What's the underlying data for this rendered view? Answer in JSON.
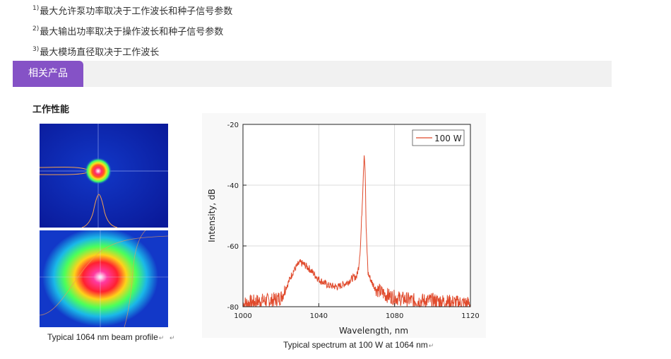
{
  "notes": [
    {
      "sup": "1)",
      "text": "最大允许泵功率取决于工作波长和种子信号参数"
    },
    {
      "sup": "2)",
      "text": "最大输出功率取决于操作波长和种子信号参数"
    },
    {
      "sup": "3)",
      "text": "最大模场直径取决于工作波长"
    }
  ],
  "section": {
    "tab_label": "相关产品"
  },
  "performance_title": "工作性能",
  "beam_caption": "Typical 1064 nm beam profile",
  "spectrum_caption": "Typical spectrum at 100 W at 1064 nm",
  "return_mark": "↵",
  "colors": {
    "accent": "#8552c6",
    "bar_bg": "#f1f1f1",
    "series": "#e04a2c"
  },
  "chart_data": {
    "type": "line",
    "title": "",
    "xlabel": "Wavelength, nm",
    "ylabel": "Intensity, dB",
    "xlim": [
      1000,
      1120
    ],
    "ylim": [
      -80,
      -20
    ],
    "xticks": [
      1000,
      1040,
      1080,
      1120
    ],
    "yticks": [
      -20,
      -40,
      -60,
      -80
    ],
    "grid": true,
    "legend": "top-right",
    "series": [
      {
        "name": "100 W",
        "x": [
          1000,
          1005,
          1010,
          1015,
          1020,
          1024,
          1026,
          1028,
          1030,
          1032,
          1035,
          1040,
          1045,
          1050,
          1055,
          1058,
          1060,
          1061,
          1062,
          1063,
          1063.5,
          1064,
          1064.5,
          1065,
          1066,
          1068,
          1070,
          1075,
          1080,
          1090,
          1100,
          1110,
          1120
        ],
        "y": [
          -79,
          -78.5,
          -78,
          -78,
          -77,
          -72,
          -69,
          -67,
          -65.5,
          -66,
          -67.5,
          -71,
          -73,
          -73.5,
          -72,
          -70.5,
          -70,
          -67,
          -60,
          -45,
          -36,
          -29,
          -36,
          -55,
          -69,
          -72,
          -74,
          -76,
          -77,
          -78,
          -78,
          -78.5,
          -79
        ]
      }
    ]
  }
}
